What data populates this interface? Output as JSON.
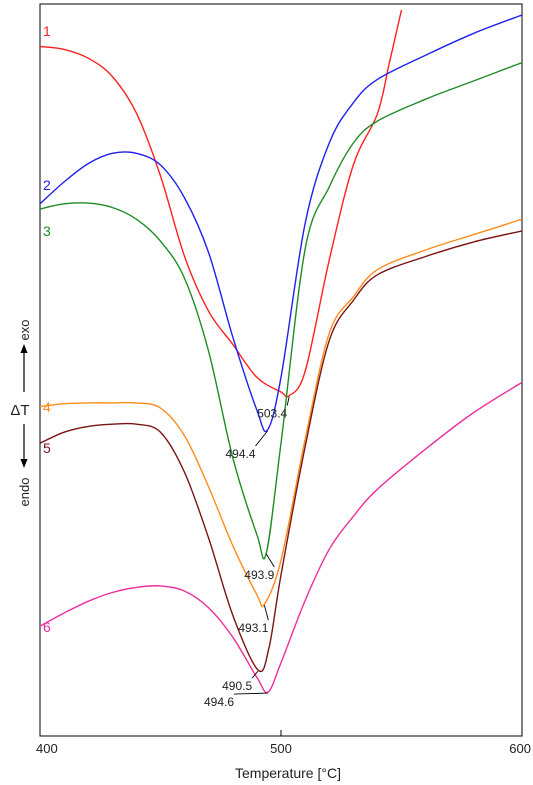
{
  "chart_data": {
    "type": "line",
    "title": "",
    "xlabel": "Temperature [°C]",
    "ylabel": "ΔT",
    "y_up_label": "exo",
    "y_down_label": "endo",
    "xlim": [
      400,
      600
    ],
    "x_ticks": [
      "400",
      "500",
      "600"
    ],
    "grid": false,
    "series": [
      {
        "name": "1",
        "color": "#ff2020",
        "x": [
          400,
          410,
          420,
          430,
          440,
          450,
          460,
          470,
          480,
          490,
          500,
          503.4,
          510,
          520,
          530,
          540,
          545,
          550
        ],
        "y": [
          0.942,
          0.938,
          0.926,
          0.901,
          0.851,
          0.765,
          0.655,
          0.58,
          0.535,
          0.49,
          0.47,
          0.465,
          0.498,
          0.65,
          0.78,
          0.85,
          0.92,
          0.992
        ]
      },
      {
        "name": "2",
        "color": "#2020ee",
        "x": [
          400,
          410,
          420,
          430,
          440,
          450,
          460,
          470,
          480,
          490,
          494.4,
          500,
          510,
          520,
          530,
          540,
          560,
          580,
          600
        ],
        "y": [
          0.727,
          0.757,
          0.782,
          0.796,
          0.796,
          0.78,
          0.735,
          0.66,
          0.545,
          0.445,
          0.418,
          0.49,
          0.7,
          0.81,
          0.865,
          0.897,
          0.93,
          0.96,
          0.985
        ]
      },
      {
        "name": "3",
        "color": "#1e8c24",
        "x": [
          400,
          410,
          420,
          430,
          440,
          450,
          460,
          470,
          480,
          490,
          493.9,
          500,
          510,
          520,
          530,
          540,
          560,
          580,
          600
        ],
        "y": [
          0.72,
          0.727,
          0.728,
          0.722,
          0.706,
          0.676,
          0.625,
          0.525,
          0.38,
          0.275,
          0.25,
          0.4,
          0.665,
          0.75,
          0.81,
          0.84,
          0.87,
          0.895,
          0.92
        ]
      },
      {
        "name": "4",
        "color": "#ff8c1a",
        "x": [
          400,
          410,
          420,
          430,
          440,
          450,
          460,
          470,
          480,
          490,
          493.1,
          500,
          510,
          520,
          530,
          540,
          560,
          580,
          600
        ],
        "y": [
          0.45,
          0.454,
          0.455,
          0.455,
          0.455,
          0.448,
          0.41,
          0.34,
          0.26,
          0.193,
          0.18,
          0.24,
          0.405,
          0.55,
          0.6,
          0.637,
          0.664,
          0.685,
          0.706
        ]
      },
      {
        "name": "5",
        "color": "#7a1414",
        "x": [
          400,
          410,
          420,
          430,
          440,
          450,
          460,
          470,
          480,
          490.5,
          495,
          500,
          510,
          520,
          530,
          540,
          560,
          580,
          600
        ],
        "y": [
          0.4,
          0.415,
          0.423,
          0.426,
          0.426,
          0.415,
          0.36,
          0.27,
          0.165,
          0.09,
          0.12,
          0.22,
          0.395,
          0.54,
          0.595,
          0.63,
          0.655,
          0.675,
          0.69
        ]
      },
      {
        "name": "6",
        "color": "#ee2e9a",
        "x": [
          400,
          410,
          420,
          430,
          440,
          450,
          460,
          470,
          480,
          490,
          494.6,
          500,
          510,
          520,
          530,
          540,
          560,
          580,
          600
        ],
        "y": [
          0.15,
          0.168,
          0.184,
          0.196,
          0.203,
          0.205,
          0.198,
          0.175,
          0.135,
          0.08,
          0.06,
          0.1,
          0.185,
          0.255,
          0.3,
          0.337,
          0.392,
          0.442,
          0.483
        ]
      }
    ],
    "peak_annotations": [
      {
        "label": "503.4",
        "series": "1",
        "x": 503.4
      },
      {
        "label": "494.4",
        "series": "2",
        "x": 494.4
      },
      {
        "label": "493.9",
        "series": "3",
        "x": 493.9
      },
      {
        "label": "493.1",
        "series": "4",
        "x": 493.1
      },
      {
        "label": "490.5",
        "series": "5",
        "x": 490.5
      },
      {
        "label": "494.6",
        "series": "6",
        "x": 494.6
      }
    ]
  }
}
